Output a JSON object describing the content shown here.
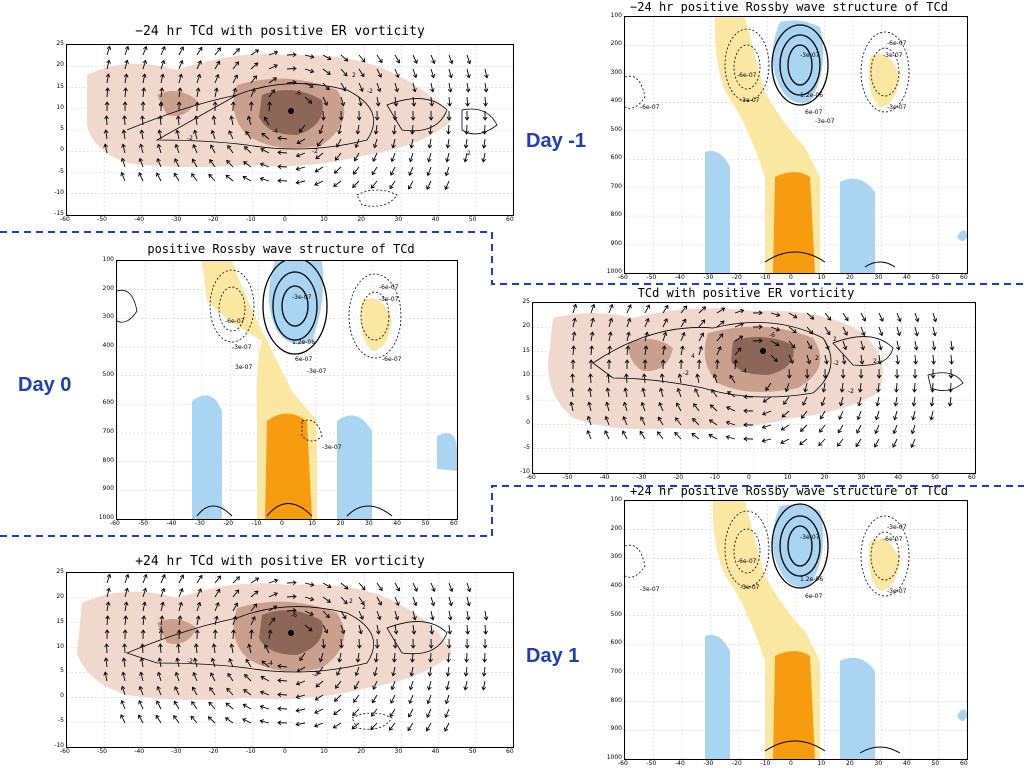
{
  "colors": {
    "day_label": "#1f3db8",
    "divider": "#1f3db8",
    "vort_light": "#f0d9cc",
    "vort_mid": "#c9a08e",
    "vort_dark": "#8c6656",
    "warm_light": "#fae7a2",
    "warm_dark": "#f79b0f",
    "cold_light": "#a9d4f2"
  },
  "day_labels": {
    "minus1": "Day -1",
    "zero": "Day 0",
    "plus1": "Day 1"
  },
  "panels": {
    "p1": {
      "title": "−24 hr TCd with positive ER vorticity",
      "yticks": [
        "25",
        "20",
        "15",
        "10",
        "5",
        "0",
        "-5",
        "-10",
        "-15"
      ],
      "xticks": [
        "-60",
        "-50",
        "-40",
        "-30",
        "-20",
        "-10",
        "0",
        "10",
        "20",
        "30",
        "40",
        "50",
        "60"
      ],
      "contour_labels": [
        "-6",
        "-4",
        "-2",
        "-2",
        "-2",
        "4",
        "2",
        "2"
      ]
    },
    "p2": {
      "title": "−24 hr positive Rossby wave structure of TCd",
      "yticks": [
        "100",
        "200",
        "300",
        "400",
        "500",
        "600",
        "700",
        "800",
        "900",
        "1000"
      ],
      "xticks": [
        "-60",
        "-50",
        "-40",
        "-30",
        "-20",
        "-10",
        "0",
        "10",
        "20",
        "30",
        "40",
        "50",
        "60"
      ],
      "contour_labels": [
        "-3e-07",
        "-6e-07",
        "1.2e-06",
        "6e-07",
        "-3e-07",
        "-6e-07",
        "-3e-07",
        "-3e-07",
        "-6e-07",
        "-3e-07"
      ]
    },
    "p3": {
      "title": "positive Rossby wave structure of TCd",
      "yticks": [
        "100",
        "200",
        "300",
        "400",
        "500",
        "600",
        "700",
        "800",
        "900",
        "1000"
      ],
      "xticks": [
        "-60",
        "-50",
        "-40",
        "-30",
        "-20",
        "-10",
        "0",
        "10",
        "20",
        "30",
        "40",
        "50",
        "60"
      ],
      "contour_labels": [
        "-3e-07",
        "-6e-07",
        "1.2e-06",
        "6e-07",
        "3e-07",
        "-3e-07",
        "-6e-07",
        "-3e-07",
        "-6e-07",
        "-3e-07",
        "-3e-07"
      ]
    },
    "p4": {
      "title": "TCd with positive ER vorticity",
      "yticks": [
        "25",
        "20",
        "15",
        "10",
        "5",
        "0",
        "-5",
        "-10"
      ],
      "xticks": [
        "-60",
        "-50",
        "-40",
        "-30",
        "-20",
        "-10",
        "0",
        "10",
        "20",
        "30",
        "40",
        "50",
        "60"
      ],
      "contour_labels": [
        "-6",
        "-4",
        "-2",
        "2",
        "2",
        "-2",
        "2",
        "-2",
        "4"
      ]
    },
    "p5": {
      "title": "+24 hr TCd with positive ER vorticity",
      "yticks": [
        "25",
        "20",
        "15",
        "10",
        "5",
        "0",
        "-5",
        "-10"
      ],
      "xticks": [
        "-60",
        "-50",
        "-40",
        "-30",
        "-20",
        "-10",
        "0",
        "10",
        "20",
        "30",
        "40",
        "50",
        "60"
      ],
      "contour_labels": [
        "-6",
        "-4",
        "-2",
        "-2",
        "2",
        "4",
        "2"
      ]
    },
    "p6": {
      "title": "+24 hr positive Rossby wave structure of TCd",
      "yticks": [
        "100",
        "200",
        "300",
        "400",
        "500",
        "600",
        "700",
        "800",
        "900",
        "1000"
      ],
      "xticks": [
        "-60",
        "-50",
        "-40",
        "-30",
        "-20",
        "-10",
        "0",
        "10",
        "20",
        "30",
        "40",
        "50",
        "60"
      ],
      "contour_labels": [
        "-3e-07",
        "-6e-07",
        "1.2e-06",
        "6e-07",
        "-3e-07",
        "-3e-07",
        "-6e-07",
        "-3e-07",
        "-3e-07"
      ]
    }
  }
}
